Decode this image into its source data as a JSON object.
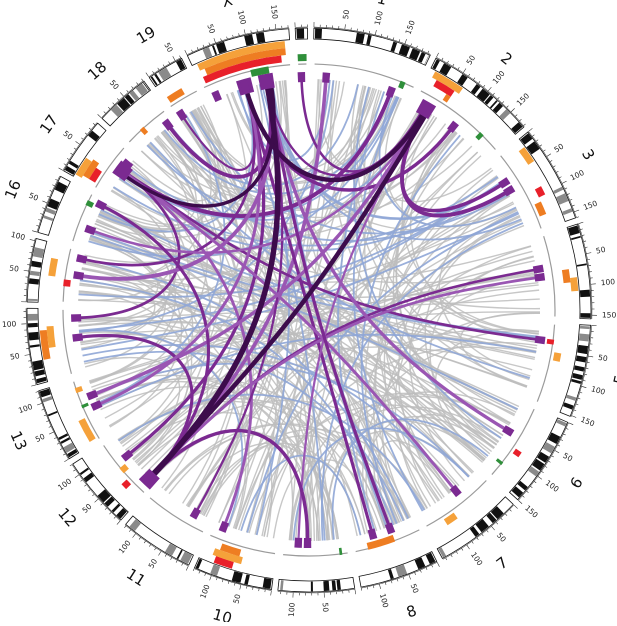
{
  "chromosomes": [
    {
      "id": "1",
      "label": "1",
      "length": 195,
      "ticks": [
        50,
        100,
        150
      ]
    },
    {
      "id": "2",
      "label": "2",
      "length": 182,
      "ticks": [
        50,
        100,
        150
      ]
    },
    {
      "id": "3",
      "label": "3",
      "length": 160,
      "ticks": [
        50,
        100,
        150
      ]
    },
    {
      "id": "4",
      "label": "4",
      "length": 156,
      "ticks": [
        50,
        100,
        150
      ]
    },
    {
      "id": "5",
      "label": "5",
      "length": 152,
      "ticks": [
        50,
        100,
        150
      ]
    },
    {
      "id": "6",
      "label": "6",
      "length": 150,
      "ticks": [
        50,
        100,
        150
      ]
    },
    {
      "id": "7",
      "label": "7",
      "length": 145,
      "ticks": [
        50,
        100
      ]
    },
    {
      "id": "8",
      "label": "8",
      "length": 130,
      "ticks": [
        50,
        100
      ]
    },
    {
      "id": "9",
      "label": "9",
      "length": 125,
      "ticks": [
        50,
        100
      ]
    },
    {
      "id": "10",
      "label": "10",
      "length": 130,
      "ticks": [
        50,
        100
      ]
    },
    {
      "id": "11",
      "label": "11",
      "length": 122,
      "ticks": [
        50,
        100
      ]
    },
    {
      "id": "12",
      "label": "12",
      "length": 120,
      "ticks": [
        50,
        100
      ]
    },
    {
      "id": "13",
      "label": "13",
      "length": 121,
      "ticks": [
        50,
        100
      ]
    },
    {
      "id": "14",
      "label": "14",
      "length": 125,
      "ticks": [
        50,
        100
      ]
    },
    {
      "id": "15",
      "label": "15",
      "length": 104,
      "ticks": [
        50,
        100
      ]
    },
    {
      "id": "16",
      "label": "16",
      "length": 98,
      "ticks": [
        50
      ]
    },
    {
      "id": "17",
      "label": "17",
      "length": 95,
      "ticks": [
        50
      ]
    },
    {
      "id": "18",
      "label": "18",
      "length": 91,
      "ticks": [
        50
      ]
    },
    {
      "id": "19",
      "label": "19",
      "length": 61,
      "ticks": [
        50
      ]
    },
    {
      "id": "X",
      "label": "X",
      "length": 171,
      "ticks": [
        50,
        100,
        150
      ]
    },
    {
      "id": "Y",
      "label": "Y",
      "length": 20,
      "ticks": []
    }
  ],
  "colors": {
    "ideogram_dark": "#111111",
    "ideogram_light": "#ffffff",
    "ideogram_gray": "#8a8a8a",
    "orange": "#f5a13a",
    "dark_orange": "#ee7d22",
    "red": "#e8202a",
    "green": "#2f8f3a",
    "purple": "#7b2a91",
    "dark_purple": "#3d0c4c",
    "medium_purple": "#9a56b3",
    "light_blue": "#8fa6d6",
    "gray_link": "#bdbdbd",
    "inner_ring": "#9b9b9b"
  }
}
